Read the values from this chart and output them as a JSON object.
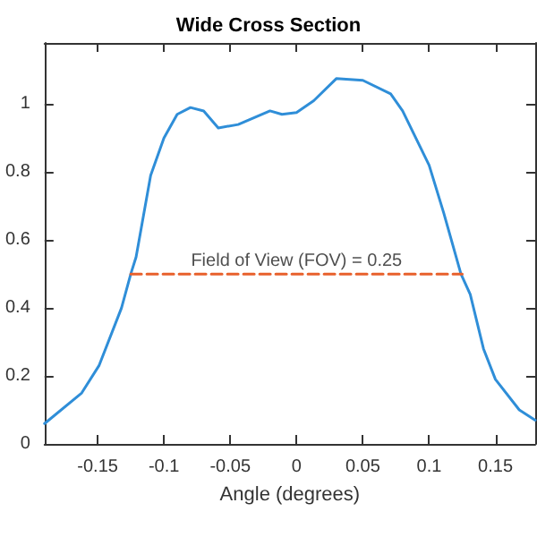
{
  "chart_data": {
    "type": "line",
    "title": "Wide Cross Section",
    "xlabel": "Angle (degrees)",
    "annotations": [
      {
        "text": "Field of View (FOV) = 0.25",
        "x": 0,
        "y": 0.5
      }
    ],
    "series": [
      {
        "color": "#2f8ed8",
        "line_style": "solid",
        "x": [
          -0.19,
          -0.162,
          -0.149,
          -0.132,
          -0.125,
          -0.121,
          -0.11,
          -0.1,
          -0.09,
          -0.08,
          -0.07,
          -0.059,
          -0.044,
          -0.02,
          -0.011,
          0,
          0.013,
          0.03,
          0.05,
          0.071,
          0.08,
          0.1,
          0.111,
          0.124,
          0.131,
          0.141,
          0.15,
          0.168,
          0.18
        ],
        "values": [
          0.06,
          0.15,
          0.23,
          0.4,
          0.5,
          0.55,
          0.79,
          0.9,
          0.97,
          0.99,
          0.98,
          0.93,
          0.94,
          0.98,
          0.97,
          0.975,
          1.01,
          1.075,
          1.07,
          1.03,
          0.98,
          0.82,
          0.68,
          0.5,
          0.44,
          0.28,
          0.19,
          0.1,
          0.07
        ]
      },
      {
        "color": "#e8602c",
        "line_style": "dashed",
        "x": [
          -0.125,
          0.125
        ],
        "values": [
          0.5,
          0.5
        ]
      }
    ],
    "xlim": [
      -0.19,
      0.18
    ],
    "ylim": [
      0,
      1.18
    ],
    "xticks": [
      -0.15,
      -0.1,
      -0.05,
      0,
      0.05,
      0.1,
      0.15
    ],
    "yticks": [
      0,
      0.2,
      0.4,
      0.6,
      0.8,
      1
    ],
    "grid": false,
    "marker": "none"
  }
}
